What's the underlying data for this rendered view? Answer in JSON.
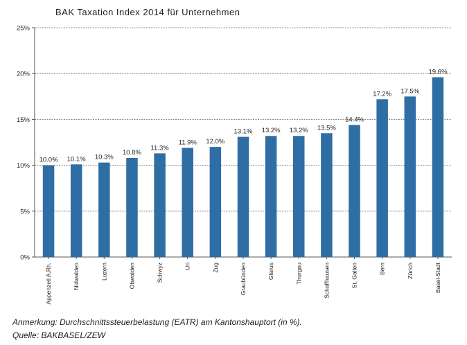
{
  "chart_data": {
    "type": "bar",
    "title": "BAK Taxation Index 2014 für Unternehmen",
    "categories": [
      "Appenzell A.Rh.",
      "Nidwalden",
      "Luzern",
      "Obwalden",
      "Schwyz",
      "Uri",
      "Zug",
      "Graubünden",
      "Glarus",
      "Thurgau",
      "Schaffhausen",
      "St. Gallen",
      "Bern",
      "Zürich",
      "Basel-Stadt"
    ],
    "values": [
      10.0,
      10.1,
      10.3,
      10.8,
      11.3,
      11.9,
      12.0,
      13.1,
      13.2,
      13.2,
      13.5,
      14.4,
      17.2,
      17.5,
      19.6
    ],
    "value_labels": [
      "10.0%",
      "10.1%",
      "10.3%",
      "10.8%",
      "11.3%",
      "11.9%",
      "12.0%",
      "13.1%",
      "13.2%",
      "13.2%",
      "13.5%",
      "14.4%",
      "17.2%",
      "17.5%",
      "19.6%"
    ],
    "yticks": [
      0,
      5,
      10,
      15,
      20,
      25
    ],
    "ytick_labels": [
      "0%",
      "5%",
      "10%",
      "15%",
      "20%",
      "25%"
    ],
    "ylim": [
      0,
      25
    ],
    "grid": true,
    "bar_color": "#2f6ea5"
  },
  "notes": {
    "anmerkung": "Anmerkung: Durchschnittssteuerbelastung (EATR) am Kantonshauptort (in %).",
    "quelle": "Quelle: BAKBASEL/ZEW"
  }
}
